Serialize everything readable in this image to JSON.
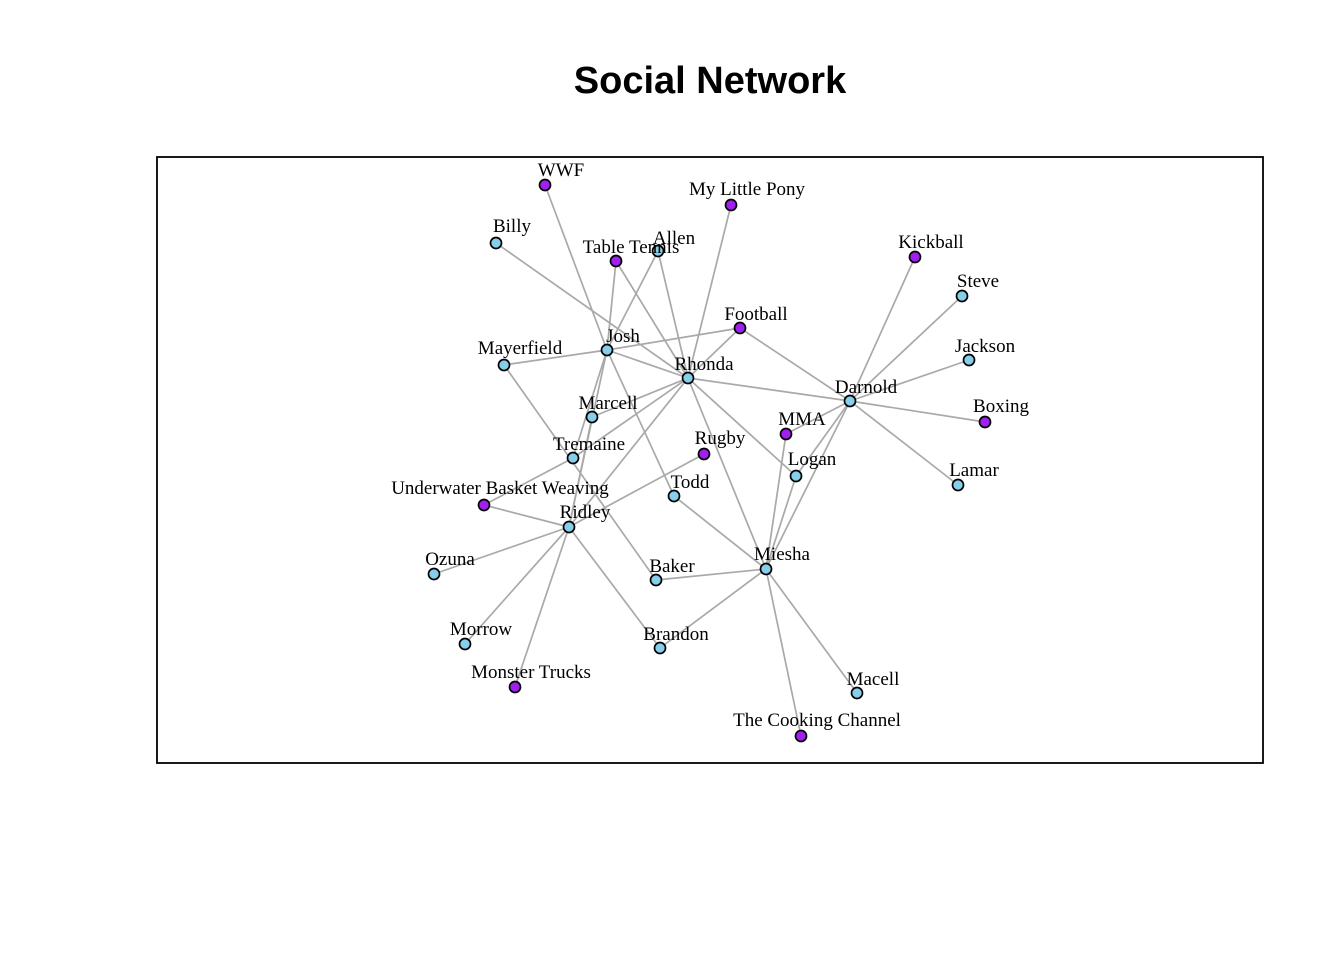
{
  "title": "Social Network",
  "colors": {
    "person": "#87ceeb",
    "interest": "#a020f0",
    "edge": "#a9a9a9"
  },
  "nodes": [
    {
      "id": "WWF",
      "label": "WWF",
      "kind": "interest"
    },
    {
      "id": "MyLittlePony",
      "label": "My Little Pony",
      "kind": "interest"
    },
    {
      "id": "Billy",
      "label": "Billy",
      "kind": "person"
    },
    {
      "id": "TableTennis",
      "label": "Table Tennis",
      "kind": "interest"
    },
    {
      "id": "Allen",
      "label": "Allen",
      "kind": "person"
    },
    {
      "id": "Kickball",
      "label": "Kickball",
      "kind": "interest"
    },
    {
      "id": "Steve",
      "label": "Steve",
      "kind": "person"
    },
    {
      "id": "Football",
      "label": "Football",
      "kind": "interest"
    },
    {
      "id": "Josh",
      "label": "Josh",
      "kind": "person"
    },
    {
      "id": "Mayerfield",
      "label": "Mayerfield",
      "kind": "person"
    },
    {
      "id": "Jackson",
      "label": "Jackson",
      "kind": "person"
    },
    {
      "id": "Rhonda",
      "label": "Rhonda",
      "kind": "person"
    },
    {
      "id": "Darnold",
      "label": "Darnold",
      "kind": "person"
    },
    {
      "id": "Boxing",
      "label": "Boxing",
      "kind": "interest"
    },
    {
      "id": "Marcell",
      "label": "Marcell",
      "kind": "person"
    },
    {
      "id": "MMA",
      "label": "MMA",
      "kind": "interest"
    },
    {
      "id": "Rugby",
      "label": "Rugby",
      "kind": "interest"
    },
    {
      "id": "Tremaine",
      "label": "Tremaine",
      "kind": "person"
    },
    {
      "id": "Logan",
      "label": "Logan",
      "kind": "person"
    },
    {
      "id": "Lamar",
      "label": "Lamar",
      "kind": "person"
    },
    {
      "id": "UBW",
      "label": "Underwater Basket Weaving",
      "kind": "interest"
    },
    {
      "id": "Todd",
      "label": "Todd",
      "kind": "person"
    },
    {
      "id": "Ridley",
      "label": "Ridley",
      "kind": "person"
    },
    {
      "id": "Ozuna",
      "label": "Ozuna",
      "kind": "person"
    },
    {
      "id": "Miesha",
      "label": "Miesha",
      "kind": "person"
    },
    {
      "id": "Baker",
      "label": "Baker",
      "kind": "person"
    },
    {
      "id": "Morrow",
      "label": "Morrow",
      "kind": "person"
    },
    {
      "id": "Brandon",
      "label": "Brandon",
      "kind": "person"
    },
    {
      "id": "MonsterTrucks",
      "label": "Monster Trucks",
      "kind": "interest"
    },
    {
      "id": "Macell",
      "label": "Macell",
      "kind": "person"
    },
    {
      "id": "CookingChannel",
      "label": "The Cooking Channel",
      "kind": "interest"
    }
  ],
  "edges": [
    [
      "Josh",
      "WWF"
    ],
    [
      "Josh",
      "TableTennis"
    ],
    [
      "Josh",
      "Allen"
    ],
    [
      "Josh",
      "Football"
    ],
    [
      "Josh",
      "Mayerfield"
    ],
    [
      "Josh",
      "Rhonda"
    ],
    [
      "Josh",
      "Todd"
    ],
    [
      "Josh",
      "Tremaine"
    ],
    [
      "Josh",
      "Ridley"
    ],
    [
      "Billy",
      "Rhonda"
    ],
    [
      "Rhonda",
      "Allen"
    ],
    [
      "Rhonda",
      "TableTennis"
    ],
    [
      "Rhonda",
      "MyLittlePony"
    ],
    [
      "Rhonda",
      "Football"
    ],
    [
      "Rhonda",
      "Darnold"
    ],
    [
      "Rhonda",
      "Marcell"
    ],
    [
      "Rhonda",
      "Tremaine"
    ],
    [
      "Rhonda",
      "Ridley"
    ],
    [
      "Rhonda",
      "Logan"
    ],
    [
      "Rhonda",
      "Miesha"
    ],
    [
      "Football",
      "Darnold"
    ],
    [
      "Darnold",
      "Kickball"
    ],
    [
      "Darnold",
      "Steve"
    ],
    [
      "Darnold",
      "Jackson"
    ],
    [
      "Darnold",
      "Boxing"
    ],
    [
      "Darnold",
      "Lamar"
    ],
    [
      "Darnold",
      "Logan"
    ],
    [
      "Darnold",
      "Miesha"
    ],
    [
      "Darnold",
      "MMA"
    ],
    [
      "MMA",
      "Miesha"
    ],
    [
      "Logan",
      "Miesha"
    ],
    [
      "Rugby",
      "Ridley"
    ],
    [
      "Todd",
      "Miesha"
    ],
    [
      "Baker",
      "Miesha"
    ],
    [
      "Brandon",
      "Miesha"
    ],
    [
      "Miesha",
      "Macell"
    ],
    [
      "Miesha",
      "CookingChannel"
    ],
    [
      "Tremaine",
      "UBW"
    ],
    [
      "Marcell",
      "Ridley"
    ],
    [
      "Mayerfield",
      "Baker"
    ],
    [
      "Ridley",
      "UBW"
    ],
    [
      "Ridley",
      "Ozuna"
    ],
    [
      "Ridley",
      "Morrow"
    ],
    [
      "Ridley",
      "MonsterTrucks"
    ],
    [
      "Ridley",
      "Brandon"
    ]
  ]
}
